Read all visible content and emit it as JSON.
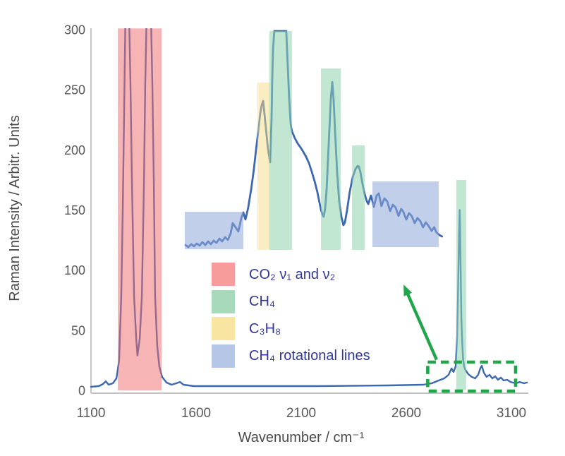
{
  "legend": {
    "items": [
      {
        "label": "CO₂ ν₁ and ν₂",
        "color": "#F89B9B"
      },
      {
        "label": "CH₄",
        "color": "#A6DABA"
      },
      {
        "label": "C₃H₈",
        "color": "#F8E5A2"
      },
      {
        "label": "CH₄ rotational lines",
        "color": "#B6C6E7"
      }
    ]
  },
  "chart_data": {
    "type": "line",
    "title": "",
    "xlabel": "Wavenumber / cm⁻¹",
    "ylabel": "Raman Intensity / Arbitr. Units",
    "xlim": [
      1100,
      3180
    ],
    "ylim": [
      0,
      300
    ],
    "x_ticks": [
      1100,
      1600,
      2100,
      2600,
      3100
    ],
    "y_ticks": [
      0,
      50,
      100,
      150,
      200,
      250,
      300
    ],
    "grid": false,
    "legend_position": "inside-lower-middle",
    "line_color": "#3C68B0",
    "axis_text_color": "#595959",
    "series": [
      {
        "name": "raman-spectrum-main",
        "role": "main",
        "points": [
          [
            1100,
            3
          ],
          [
            1137,
            3.5
          ],
          [
            1157,
            5.3
          ],
          [
            1170,
            7.6
          ],
          [
            1184,
            4.7
          ],
          [
            1204,
            5.9
          ],
          [
            1221,
            10
          ],
          [
            1234,
            25
          ],
          [
            1244,
            78
          ],
          [
            1251,
            149
          ],
          [
            1258,
            237
          ],
          [
            1264,
            315
          ],
          [
            1281,
            315
          ],
          [
            1288,
            254
          ],
          [
            1295,
            172
          ],
          [
            1305,
            78
          ],
          [
            1315,
            43
          ],
          [
            1321,
            29
          ],
          [
            1332,
            43
          ],
          [
            1342,
            78
          ],
          [
            1352,
            172
          ],
          [
            1358,
            254
          ],
          [
            1365,
            315
          ],
          [
            1385,
            315
          ],
          [
            1392,
            254
          ],
          [
            1399,
            172
          ],
          [
            1405,
            78
          ],
          [
            1415,
            37
          ],
          [
            1425,
            20
          ],
          [
            1439,
            11
          ],
          [
            1459,
            6.5
          ],
          [
            1483,
            4.7
          ],
          [
            1506,
            5.9
          ],
          [
            1523,
            7
          ],
          [
            1540,
            4.7
          ],
          [
            1590,
            3.5
          ],
          [
            1842,
            3.5
          ],
          [
            2177,
            3.5
          ],
          [
            2513,
            4.1
          ],
          [
            2681,
            4.7
          ],
          [
            2721,
            5.9
          ],
          [
            2754,
            8.2
          ],
          [
            2781,
            10
          ],
          [
            2801,
            12.9
          ],
          [
            2815,
            18.2
          ],
          [
            2825,
            15.3
          ],
          [
            2835,
            20
          ],
          [
            2842,
            45
          ],
          [
            2847,
            90
          ],
          [
            2851,
            130
          ],
          [
            2854,
            150
          ],
          [
            2856,
            135
          ],
          [
            2859,
            95
          ],
          [
            2862,
            60
          ],
          [
            2866,
            40
          ],
          [
            2870,
            26
          ],
          [
            2875,
            20
          ],
          [
            2881,
            17
          ],
          [
            2895,
            13.5
          ],
          [
            2911,
            11.2
          ],
          [
            2928,
            10
          ],
          [
            2942,
            12.9
          ],
          [
            2952,
            18.2
          ],
          [
            2959,
            20.5
          ],
          [
            2969,
            14.7
          ],
          [
            2982,
            11.2
          ],
          [
            2996,
            12.9
          ],
          [
            3009,
            10
          ],
          [
            3023,
            11.7
          ],
          [
            3036,
            8.8
          ],
          [
            3050,
            10.6
          ],
          [
            3063,
            8.2
          ],
          [
            3080,
            8.8
          ],
          [
            3096,
            7
          ],
          [
            3120,
            5.9
          ],
          [
            3140,
            7
          ],
          [
            3160,
            5.9
          ],
          [
            3174,
            6.5
          ]
        ]
      },
      {
        "name": "inset-magnified-spectrum",
        "role": "inset-overlay",
        "points": [
          [
            1550,
            120.9
          ],
          [
            1563,
            119.2
          ],
          [
            1577,
            121.5
          ],
          [
            1590,
            119.8
          ],
          [
            1603,
            122.1
          ],
          [
            1617,
            120.4
          ],
          [
            1630,
            123.3
          ],
          [
            1644,
            120.9
          ],
          [
            1657,
            123.9
          ],
          [
            1670,
            121.5
          ],
          [
            1684,
            124.5
          ],
          [
            1697,
            122.7
          ],
          [
            1711,
            126.2
          ],
          [
            1724,
            123.9
          ],
          [
            1738,
            127.4
          ],
          [
            1751,
            125.1
          ],
          [
            1764,
            130.3
          ],
          [
            1774,
            139.1
          ],
          [
            1788,
            135.6
          ],
          [
            1801,
            132.1
          ],
          [
            1815,
            143.3
          ],
          [
            1825,
            148
          ],
          [
            1835,
            142.1
          ],
          [
            1848,
            152.1
          ],
          [
            1862,
            167.3
          ],
          [
            1875,
            183.8
          ],
          [
            1885,
            199.6
          ],
          [
            1895,
            214.3
          ],
          [
            1905,
            230.1
          ],
          [
            1912,
            237.2
          ],
          [
            1919,
            240.7
          ],
          [
            1925,
            230.1
          ],
          [
            1932,
            218.4
          ],
          [
            1942,
            200.8
          ],
          [
            1952,
            189.6
          ],
          [
            1959,
            226
          ],
          [
            1962,
            257.1
          ],
          [
            1966,
            283.6
          ],
          [
            1972,
            298.8
          ],
          [
            2029,
            298.8
          ],
          [
            2036,
            270.6
          ],
          [
            2043,
            242.4
          ],
          [
            2050,
            221.3
          ],
          [
            2056,
            215.4
          ],
          [
            2070,
            209.6
          ],
          [
            2083,
            205.5
          ],
          [
            2097,
            202
          ],
          [
            2110,
            198.4
          ],
          [
            2123,
            194.3
          ],
          [
            2137,
            189
          ],
          [
            2150,
            182
          ],
          [
            2164,
            173.8
          ],
          [
            2177,
            165
          ],
          [
            2187,
            156.2
          ],
          [
            2194,
            150.3
          ],
          [
            2201,
            146.2
          ],
          [
            2207,
            144.4
          ],
          [
            2214,
            151.5
          ],
          [
            2221,
            167.3
          ],
          [
            2227,
            189.6
          ],
          [
            2234,
            216
          ],
          [
            2241,
            242.4
          ],
          [
            2248,
            256.5
          ],
          [
            2254,
            242.4
          ],
          [
            2261,
            216
          ],
          [
            2271,
            180.8
          ],
          [
            2281,
            157.3
          ],
          [
            2291,
            144.4
          ],
          [
            2301,
            137.4
          ],
          [
            2308,
            139.7
          ],
          [
            2318,
            149.7
          ],
          [
            2331,
            165
          ],
          [
            2345,
            177.3
          ],
          [
            2358,
            183.8
          ],
          [
            2368,
            186.7
          ],
          [
            2375,
            186.1
          ],
          [
            2382,
            181.4
          ],
          [
            2392,
            171.4
          ],
          [
            2402,
            163.2
          ],
          [
            2412,
            157.3
          ],
          [
            2419,
            155
          ],
          [
            2432,
            162
          ],
          [
            2446,
            152.6
          ],
          [
            2459,
            162
          ],
          [
            2469,
            163.8
          ],
          [
            2482,
            153.2
          ],
          [
            2496,
            159.7
          ],
          [
            2509,
            157.3
          ],
          [
            2523,
            149.1
          ],
          [
            2536,
            154.4
          ],
          [
            2549,
            152.1
          ],
          [
            2563,
            145
          ],
          [
            2576,
            150.9
          ],
          [
            2586,
            148.5
          ],
          [
            2600,
            142.1
          ],
          [
            2613,
            147.4
          ],
          [
            2626,
            145
          ],
          [
            2640,
            139.1
          ],
          [
            2653,
            143.3
          ],
          [
            2666,
            140.9
          ],
          [
            2680,
            135.6
          ],
          [
            2693,
            139.7
          ],
          [
            2706,
            136.8
          ],
          [
            2720,
            132.7
          ],
          [
            2733,
            135.6
          ],
          [
            2743,
            131.5
          ],
          [
            2757,
            129.2
          ],
          [
            2770,
            128
          ]
        ]
      }
    ],
    "bands": [
      {
        "name": "co2-nu1-nu2-band",
        "species": "CO₂ ν₁ and ν₂",
        "fill": "#EF6A6A",
        "opacity": 0.5,
        "x": [
          1228,
          1436
        ],
        "i": [
          0,
          301
        ]
      },
      {
        "name": "ch4-stretch-band",
        "species": "CH₄",
        "fill": "#8ED3AF",
        "opacity": 0.55,
        "x": [
          2838,
          2885
        ],
        "i": [
          0.3,
          175
        ]
      },
      {
        "name": "inset-ch4-rotational-left-box",
        "species": "CH₄ rotational lines",
        "fill": "#8FA8DB",
        "opacity": 0.55,
        "x": [
          1546,
          1825
        ],
        "i": [
          117.4,
          148.5
        ]
      },
      {
        "name": "inset-c3h8-band",
        "species": "C₃H₈",
        "fill": "#F6DC85",
        "opacity": 0.5,
        "x": [
          1892,
          1952
        ],
        "i": [
          116.8,
          256
        ]
      },
      {
        "name": "inset-ch4-band-1",
        "species": "CH₄",
        "fill": "#8ED3AF",
        "opacity": 0.55,
        "x": [
          1949,
          2056
        ],
        "i": [
          116.8,
          298.8
        ]
      },
      {
        "name": "inset-ch4-band-2",
        "species": "CH₄",
        "fill": "#8ED3AF",
        "opacity": 0.55,
        "x": [
          2194,
          2288
        ],
        "i": [
          116.8,
          267.7
        ]
      },
      {
        "name": "inset-ch4-band-3",
        "species": "CH₄",
        "fill": "#8ED3AF",
        "opacity": 0.55,
        "x": [
          2342,
          2402
        ],
        "i": [
          116.8,
          203.7
        ]
      },
      {
        "name": "inset-ch4-rotational-right-box",
        "species": "CH₄ rotational lines",
        "fill": "#8FA8DB",
        "opacity": 0.55,
        "x": [
          2439,
          2754
        ],
        "i": [
          119.2,
          173.8
        ]
      }
    ],
    "annotations": {
      "dashed_box": {
        "x": [
          2702,
          3120
        ],
        "i": [
          -0.6,
          23.5
        ],
        "color": "#21A54B"
      },
      "arrow": {
        "from": [
          2744,
          25.5
        ],
        "to": [
          2587,
          88
        ],
        "color": "#21A54B"
      }
    }
  }
}
